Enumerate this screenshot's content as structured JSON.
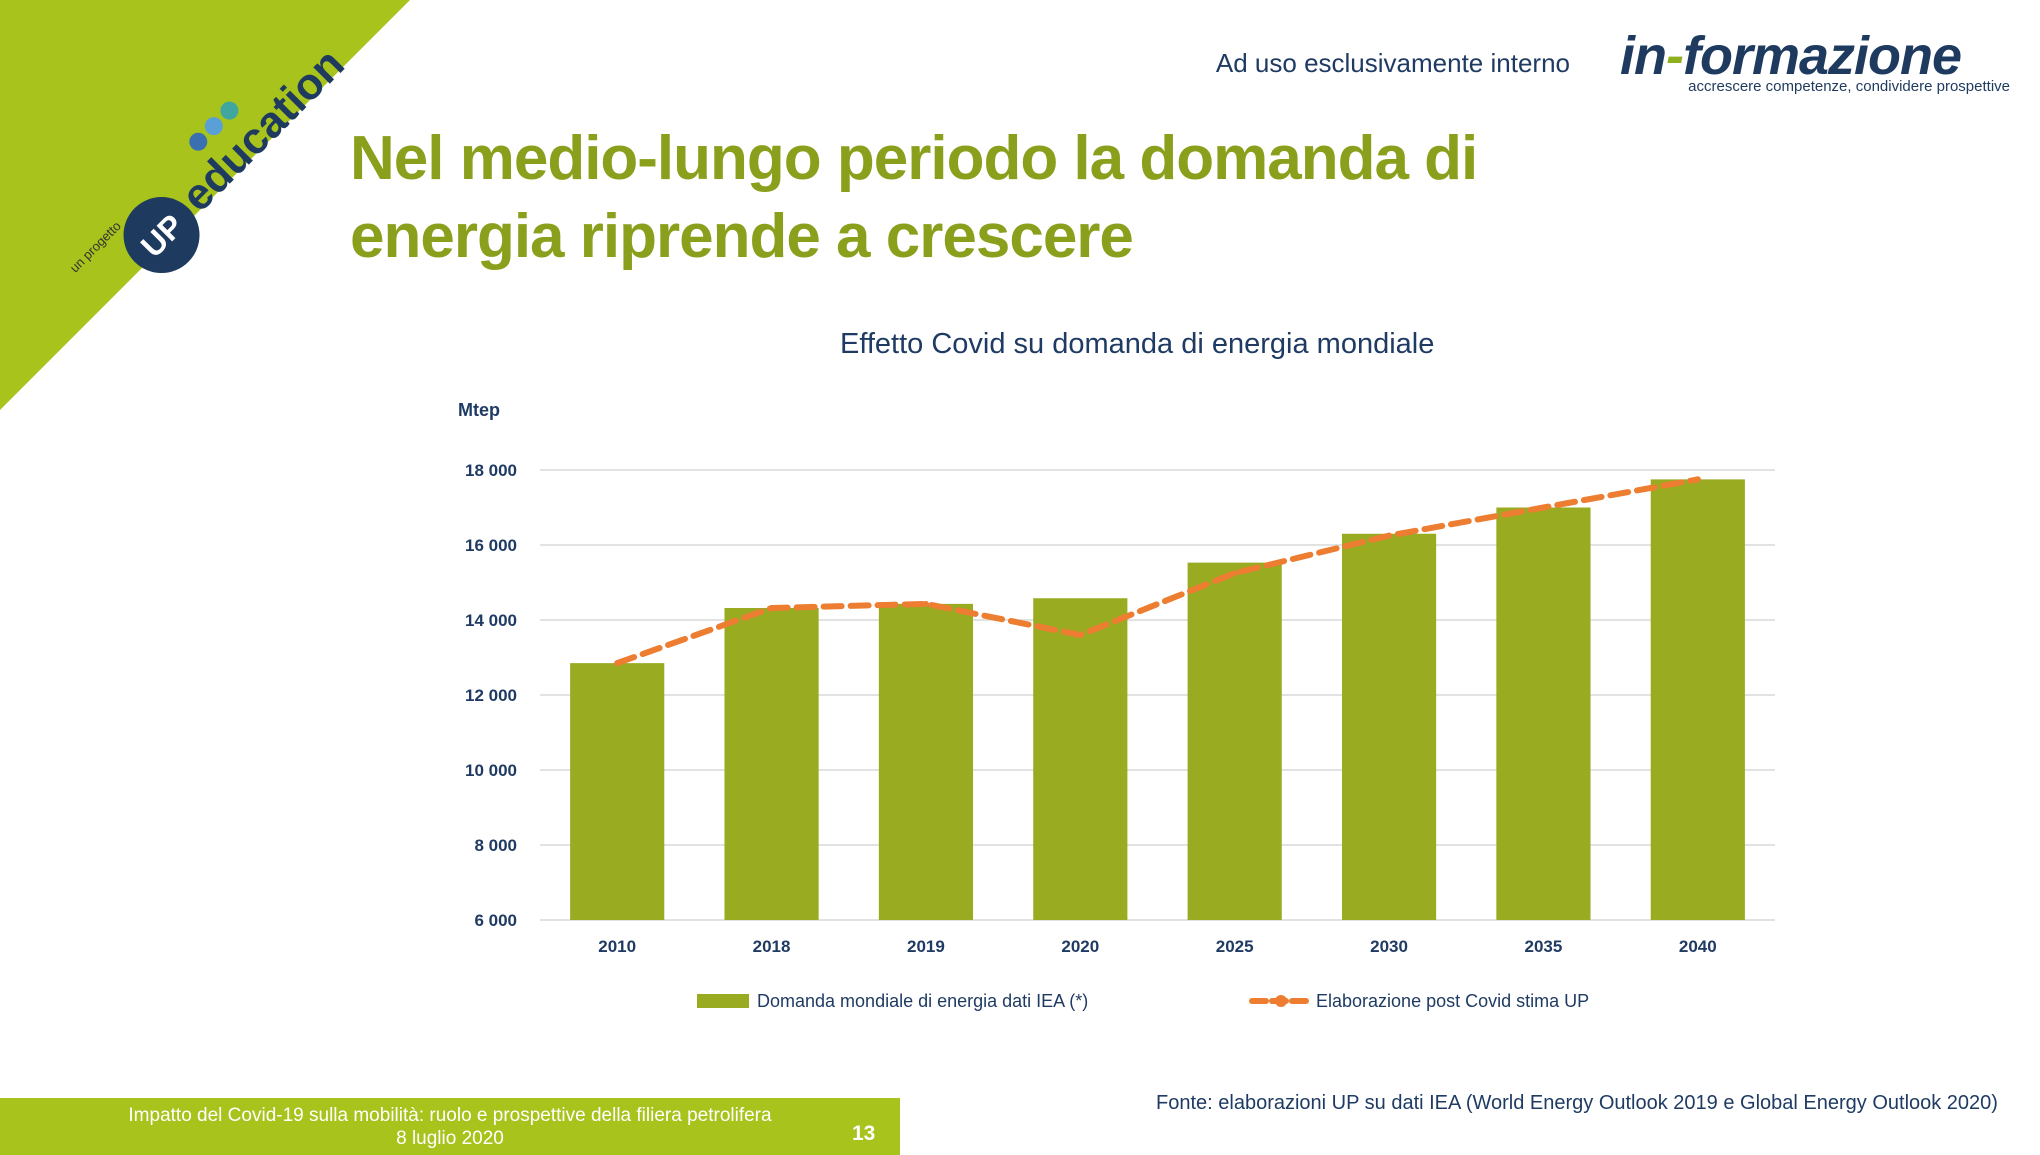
{
  "header": {
    "internal_note": "Ad uso esclusivamente interno",
    "brand_name_prefix": "in",
    "brand_name_dash": "-",
    "brand_name_suffix": "formazione",
    "brand_tagline": "accrescere competenze, condividere prospettive",
    "corner_logo_pretext": "un progetto",
    "corner_logo_badge": "UP",
    "corner_logo_word": "education"
  },
  "slide": {
    "title_line1": "Nel medio-lungo periodo la domanda di",
    "title_line2": "energia riprende a crescere"
  },
  "chart_data": {
    "type": "bar",
    "title": "Effetto Covid su domanda di energia mondiale",
    "ylabel": "Mtep",
    "xlabel": "",
    "categories": [
      "2010",
      "2018",
      "2019",
      "2020",
      "2025",
      "2030",
      "2035",
      "2040"
    ],
    "ylim": [
      6000,
      18000
    ],
    "yticks": [
      6000,
      8000,
      10000,
      12000,
      14000,
      16000,
      18000
    ],
    "ytick_labels": [
      "6 000",
      "8 000",
      "10 000",
      "12 000",
      "14 000",
      "16 000",
      "18 000"
    ],
    "grid": true,
    "legend_position": "bottom",
    "series": [
      {
        "name": "Domanda mondiale di energia dati IEA (*)",
        "type": "bar",
        "color": "#99ab21",
        "values": [
          12850,
          14320,
          14430,
          14580,
          15530,
          16300,
          17000,
          17750
        ]
      },
      {
        "name": "Elaborazione post Covid stima UP",
        "type": "line-dashed",
        "color": "#ed7d31",
        "values": [
          12850,
          14320,
          14430,
          13600,
          15250,
          16250,
          17000,
          17750
        ]
      }
    ]
  },
  "footer": {
    "line1": "Impatto del Covid-19 sulla mobilità: ruolo e prospettive della filiera petrolifera",
    "line2": "8 luglio 2020",
    "page_number": "13",
    "source": "Fonte: elaborazioni UP su dati IEA (World Energy Outlook 2019 e  Global Energy Outlook 2020)"
  },
  "colors": {
    "accent_green": "#a7c31c",
    "title_green": "#8aa01c",
    "navy": "#1f3b63",
    "line_orange": "#ed7d31"
  }
}
